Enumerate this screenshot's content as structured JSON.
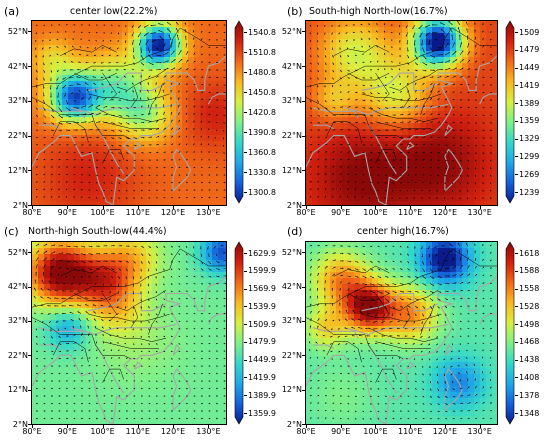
{
  "colormap": [
    "#0a1a8a",
    "#1560d8",
    "#1fa8e8",
    "#34d8c8",
    "#7ff08a",
    "#d8f040",
    "#f8b820",
    "#f06818",
    "#d02010",
    "#8a0808"
  ],
  "coastline_color": "#a6a6a6",
  "border_color": "#000000",
  "panels": [
    {
      "tag": "(a)",
      "title": "center low(22.2%)",
      "lat_labels": [
        "52°N",
        "42°N",
        "32°N",
        "22°N",
        "12°N",
        "2°N"
      ],
      "lon_labels": [
        "80°E",
        "90°E",
        "100°E",
        "110°E",
        "120°E",
        "130°E"
      ],
      "colorbar_ticks": [
        "1540.8",
        "1510.8",
        "1480.8",
        "1450.8",
        "1420.8",
        "1390.8",
        "1360.8",
        "1330.8",
        "1300.8"
      ],
      "field": {
        "base": 7,
        "blobs": [
          {
            "lon": 116,
            "lat": 48,
            "r": 6,
            "amp": -7
          },
          {
            "lon": 92,
            "lat": 33,
            "r": 7,
            "amp": -6
          },
          {
            "lon": 86,
            "lat": 44,
            "r": 6,
            "amp": -1.5
          },
          {
            "lon": 104,
            "lat": 36,
            "r": 9,
            "amp": -3
          },
          {
            "lon": 112,
            "lat": 28,
            "r": 8,
            "amp": -2.5
          },
          {
            "lon": 96,
            "lat": 10,
            "r": 14,
            "amp": 1
          },
          {
            "lon": 132,
            "lat": 28,
            "r": 10,
            "amp": 1
          }
        ]
      }
    },
    {
      "tag": "(b)",
      "title": "South-high North-low(16.7%)",
      "lat_labels": [
        "52°N",
        "42°N",
        "32°N",
        "22°N",
        "12°N",
        "2°N"
      ],
      "lon_labels": [
        "80°E",
        "90°E",
        "100°E",
        "110°E",
        "120°E",
        "130°E"
      ],
      "colorbar_ticks": [
        "1509",
        "1479",
        "1449",
        "1419",
        "1389",
        "1359",
        "1329",
        "1299",
        "1269",
        "1239"
      ],
      "field": {
        "base": 7.5,
        "blobs": [
          {
            "lon": 118,
            "lat": 49,
            "r": 7,
            "amp": -8
          },
          {
            "lon": 94,
            "lat": 46,
            "r": 10,
            "amp": -2.5
          },
          {
            "lon": 88,
            "lat": 32,
            "r": 6,
            "amp": -1.5
          },
          {
            "lon": 106,
            "lat": 34,
            "r": 10,
            "amp": -2.5
          },
          {
            "lon": 96,
            "lat": 10,
            "r": 14,
            "amp": 1.5
          },
          {
            "lon": 118,
            "lat": 14,
            "r": 14,
            "amp": 1.5
          }
        ]
      }
    },
    {
      "tag": "(c)",
      "title": "North-high South-low(44.4%)",
      "lat_labels": [
        "52°N",
        "42°N",
        "32°N",
        "22°N",
        "12°N",
        "2°N"
      ],
      "lon_labels": [
        "80°E",
        "90°E",
        "100°E",
        "110°E",
        "120°E",
        "130°E"
      ],
      "colorbar_ticks": [
        "1629.9",
        "1599.9",
        "1569.9",
        "1539.9",
        "1509.9",
        "1479.9",
        "1449.9",
        "1419.9",
        "1389.9",
        "1359.9"
      ],
      "field": {
        "base": 3.8,
        "blobs": [
          {
            "lon": 88,
            "lat": 46,
            "r": 9,
            "amp": 5.5
          },
          {
            "lon": 100,
            "lat": 44,
            "r": 8,
            "amp": 3
          },
          {
            "lon": 108,
            "lat": 50,
            "r": 8,
            "amp": 2
          },
          {
            "lon": 134,
            "lat": 52,
            "r": 6,
            "amp": -3
          },
          {
            "lon": 90,
            "lat": 30,
            "r": 6,
            "amp": -1.8
          },
          {
            "lon": 110,
            "lat": 26,
            "r": 12,
            "amp": 0.5
          },
          {
            "lon": 104,
            "lat": 36,
            "r": 8,
            "amp": 1.5
          }
        ]
      }
    },
    {
      "tag": "(d)",
      "title": "center high(16.7%)",
      "lat_labels": [
        "52°N",
        "42°N",
        "32°N",
        "22°N",
        "12°N",
        "2°N"
      ],
      "lon_labels": [
        "80°E",
        "90°E",
        "100°E",
        "110°E",
        "120°E",
        "130°E"
      ],
      "colorbar_ticks": [
        "1618",
        "1588",
        "1558",
        "1528",
        "1498",
        "1468",
        "1438",
        "1408",
        "1378",
        "1348"
      ],
      "field": {
        "base": 3.5,
        "blobs": [
          {
            "lon": 120,
            "lat": 50,
            "r": 7,
            "amp": -4
          },
          {
            "lon": 90,
            "lat": 44,
            "r": 8,
            "amp": 3
          },
          {
            "lon": 98,
            "lat": 36,
            "r": 7,
            "amp": 5.5
          },
          {
            "lon": 110,
            "lat": 34,
            "r": 8,
            "amp": 3
          },
          {
            "lon": 86,
            "lat": 30,
            "r": 6,
            "amp": 2
          },
          {
            "lon": 124,
            "lat": 14,
            "r": 7,
            "amp": -2
          },
          {
            "lon": 90,
            "lat": 10,
            "r": 10,
            "amp": 0.5
          }
        ]
      }
    }
  ]
}
